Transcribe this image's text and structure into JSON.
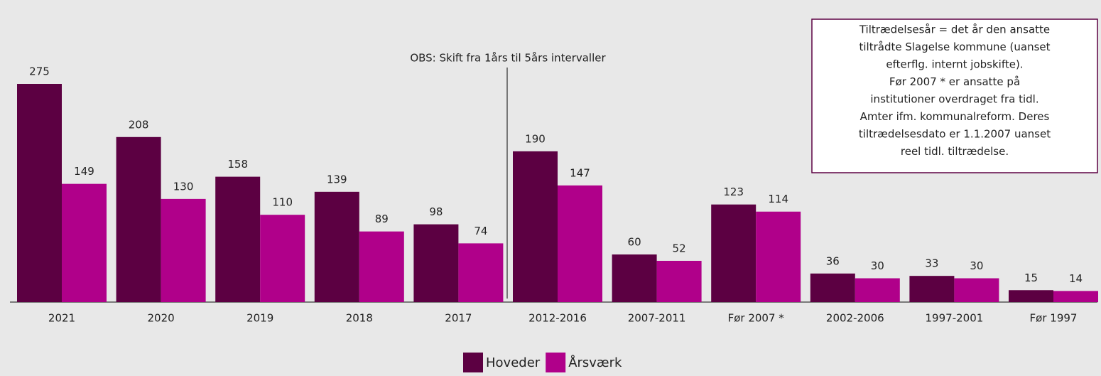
{
  "chart_data": {
    "type": "bar",
    "categories": [
      "2021",
      "2020",
      "2019",
      "2018",
      "2017",
      "2012-2016",
      "2007-2011",
      "Før 2007 *",
      "2002-2006",
      "1997-2001",
      "Før 1997"
    ],
    "series": [
      {
        "name": "Hoveder",
        "color": "#5c0042",
        "values": [
          275,
          208,
          158,
          139,
          98,
          190,
          60,
          123,
          36,
          33,
          15
        ]
      },
      {
        "name": "Årsværk",
        "color": "#b0008a",
        "values": [
          149,
          130,
          110,
          89,
          74,
          147,
          52,
          114,
          30,
          30,
          14
        ]
      }
    ],
    "annotation": "OBS: Skift fra 1års til 5års intervaller",
    "note": [
      "Tiltrædelsesår = det år den ansatte",
      "tiltrådte Slagelse kommune (uanset",
      "efterflg. internt jobskifte).",
      "Før 2007 * er ansatte på",
      "institutioner overdraget fra tidl.",
      "Amter ifm. kommunalreform. Deres",
      "tiltrædelsesdato er 1.1.2007 uanset",
      "reel tidl. tiltrædelse."
    ],
    "legend": "bottom"
  }
}
